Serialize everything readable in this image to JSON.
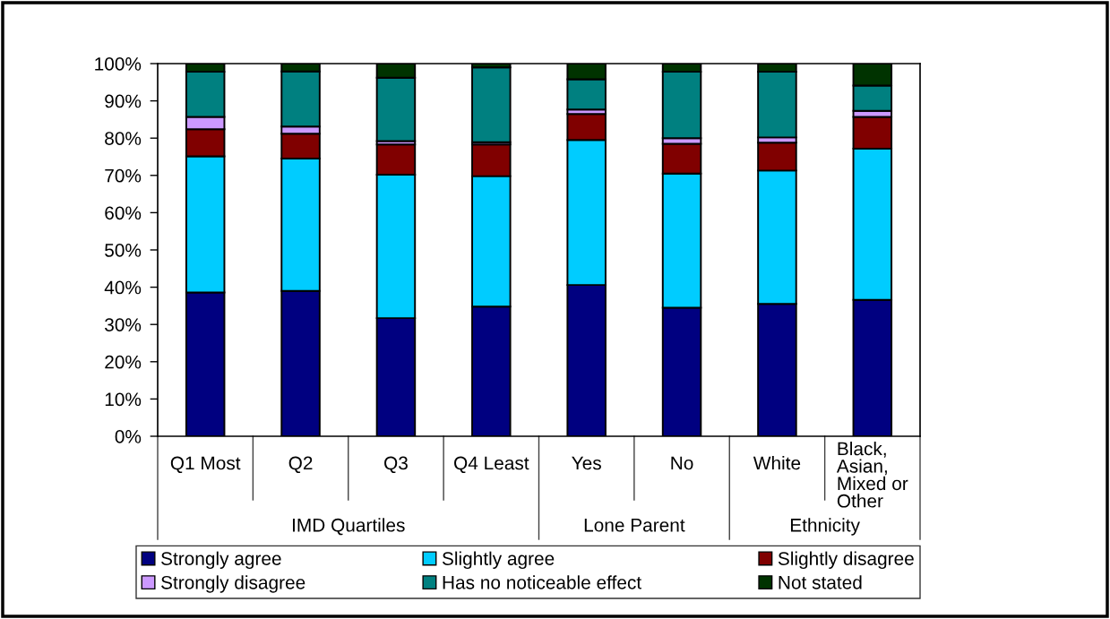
{
  "chart_data": {
    "type": "bar",
    "stacked": true,
    "categories": [
      "Q1 Most",
      "Q2",
      "Q3",
      "Q4 Least",
      "Yes",
      "No",
      "White",
      "Black, Asian, Mixed or Other"
    ],
    "series": [
      {
        "name": "Strongly agree",
        "color": "#000080",
        "values": [
          38.6,
          39.0,
          31.7,
          34.8,
          40.6,
          34.5,
          35.5,
          36.6
        ]
      },
      {
        "name": "Slightly agree",
        "color": "#00ccff",
        "values": [
          36.5,
          35.5,
          38.5,
          35.0,
          38.9,
          36.0,
          35.8,
          40.6
        ]
      },
      {
        "name": "Slightly disagree",
        "color": "#800000",
        "values": [
          7.3,
          6.7,
          8.1,
          8.5,
          7.0,
          8.0,
          7.5,
          8.5
        ]
      },
      {
        "name": "Strongly disagree",
        "color": "#cc99ff",
        "values": [
          3.3,
          1.9,
          0.9,
          0.6,
          1.2,
          1.5,
          1.4,
          1.6
        ]
      },
      {
        "name": "Has no noticeable effect",
        "color": "#008080",
        "values": [
          12.1,
          14.8,
          17.0,
          20.1,
          8.1,
          17.8,
          17.6,
          6.8
        ]
      },
      {
        "name": "Not stated",
        "color": "#003300",
        "values": [
          2.2,
          2.1,
          3.8,
          1.0,
          4.2,
          2.2,
          2.2,
          5.9
        ]
      }
    ],
    "ylim": [
      0,
      100
    ],
    "yticks": [
      {
        "value": 0,
        "label": "0%"
      },
      {
        "value": 10,
        "label": "10%"
      },
      {
        "value": 20,
        "label": "20%"
      },
      {
        "value": 30,
        "label": "30%"
      },
      {
        "value": 40,
        "label": "40%"
      },
      {
        "value": 50,
        "label": "50%"
      },
      {
        "value": 60,
        "label": "60%"
      },
      {
        "value": 70,
        "label": "70%"
      },
      {
        "value": 80,
        "label": "80%"
      },
      {
        "value": 90,
        "label": "90%"
      },
      {
        "value": 100,
        "label": "100%"
      }
    ],
    "annotations": [
      "IMD Quartiles",
      "Lone Parent",
      "Ethnicity"
    ],
    "legend": "bottom"
  }
}
